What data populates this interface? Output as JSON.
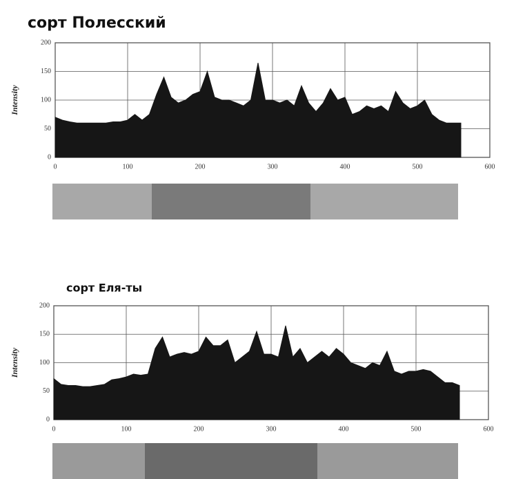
{
  "chart_data": [
    {
      "type": "area",
      "title": "сорт Полесский",
      "ylabel": "Intensity",
      "color": "#161616",
      "grid": true,
      "xlim": [
        0,
        600
      ],
      "xticks": [
        0,
        100,
        200,
        300,
        400,
        500,
        600
      ],
      "ylim": [
        0,
        200
      ],
      "yticks": [
        0,
        50,
        100,
        150,
        200
      ],
      "x": [
        0,
        10,
        20,
        30,
        40,
        50,
        60,
        70,
        80,
        90,
        100,
        110,
        120,
        130,
        140,
        150,
        160,
        170,
        180,
        190,
        200,
        210,
        220,
        230,
        240,
        250,
        260,
        270,
        280,
        290,
        300,
        310,
        320,
        330,
        340,
        350,
        360,
        370,
        380,
        390,
        400,
        410,
        420,
        430,
        440,
        450,
        460,
        470,
        480,
        490,
        500,
        510,
        520,
        530,
        540,
        550,
        560
      ],
      "values": [
        70,
        65,
        62,
        60,
        60,
        60,
        60,
        60,
        62,
        62,
        65,
        75,
        65,
        75,
        110,
        140,
        105,
        95,
        100,
        110,
        115,
        150,
        105,
        100,
        100,
        95,
        90,
        100,
        165,
        100,
        100,
        95,
        100,
        90,
        125,
        95,
        80,
        95,
        120,
        100,
        105,
        75,
        80,
        90,
        85,
        90,
        80,
        115,
        95,
        85,
        90,
        100,
        75,
        65,
        60,
        60,
        60
      ]
    },
    {
      "type": "area",
      "title": "сорт Еля-ты",
      "ylabel": "Intensity",
      "color": "#161616",
      "grid": true,
      "xlim": [
        0,
        600
      ],
      "xticks": [
        0,
        100,
        200,
        300,
        400,
        500,
        600
      ],
      "ylim": [
        0,
        200
      ],
      "yticks": [
        0,
        50,
        100,
        150,
        200
      ],
      "x": [
        0,
        10,
        20,
        30,
        40,
        50,
        60,
        70,
        80,
        90,
        100,
        110,
        120,
        130,
        140,
        150,
        160,
        170,
        180,
        190,
        200,
        210,
        220,
        230,
        240,
        250,
        260,
        270,
        280,
        290,
        300,
        310,
        320,
        330,
        340,
        350,
        360,
        370,
        380,
        390,
        400,
        410,
        420,
        430,
        440,
        450,
        460,
        470,
        480,
        490,
        500,
        510,
        520,
        530,
        540,
        550,
        560
      ],
      "values": [
        72,
        62,
        60,
        60,
        58,
        58,
        60,
        62,
        70,
        72,
        75,
        80,
        78,
        80,
        125,
        145,
        110,
        115,
        118,
        115,
        120,
        145,
        130,
        130,
        140,
        100,
        110,
        120,
        155,
        115,
        115,
        110,
        165,
        110,
        125,
        100,
        110,
        120,
        110,
        125,
        115,
        100,
        95,
        90,
        100,
        95,
        120,
        85,
        80,
        85,
        85,
        88,
        85,
        75,
        65,
        65,
        60
      ]
    }
  ]
}
